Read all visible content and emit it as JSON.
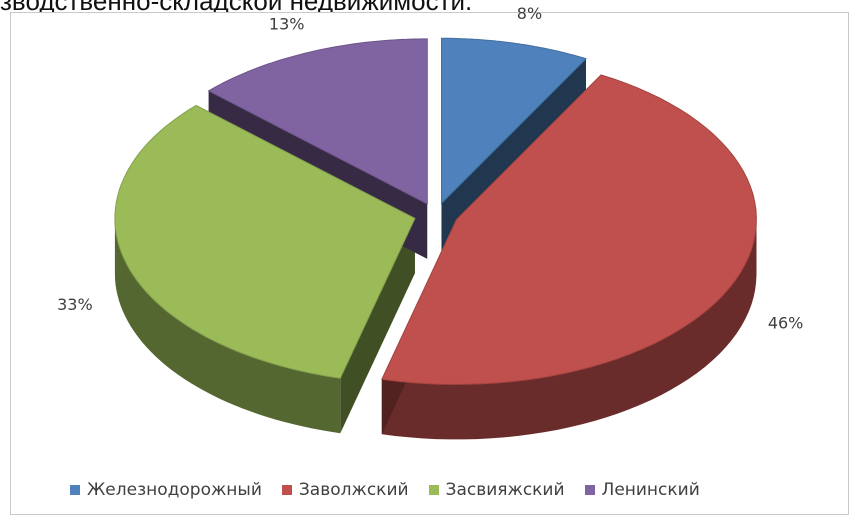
{
  "header": {
    "cut_title": "зводственно-складской недвижимости."
  },
  "chart_data": {
    "type": "pie",
    "style": "3d-exploded",
    "title": "",
    "legend_position": "bottom",
    "slices": [
      {
        "name": "Железнодорожный",
        "value": 8,
        "label": "8%",
        "color": "#4f81bd"
      },
      {
        "name": "Заволжский",
        "value": 46,
        "label": "46%",
        "color": "#c0504d"
      },
      {
        "name": "Засвияжский",
        "value": 33,
        "label": "33%",
        "color": "#9bbb59"
      },
      {
        "name": "Ленинский",
        "value": 13,
        "label": "13%",
        "color": "#8064a2"
      }
    ]
  }
}
